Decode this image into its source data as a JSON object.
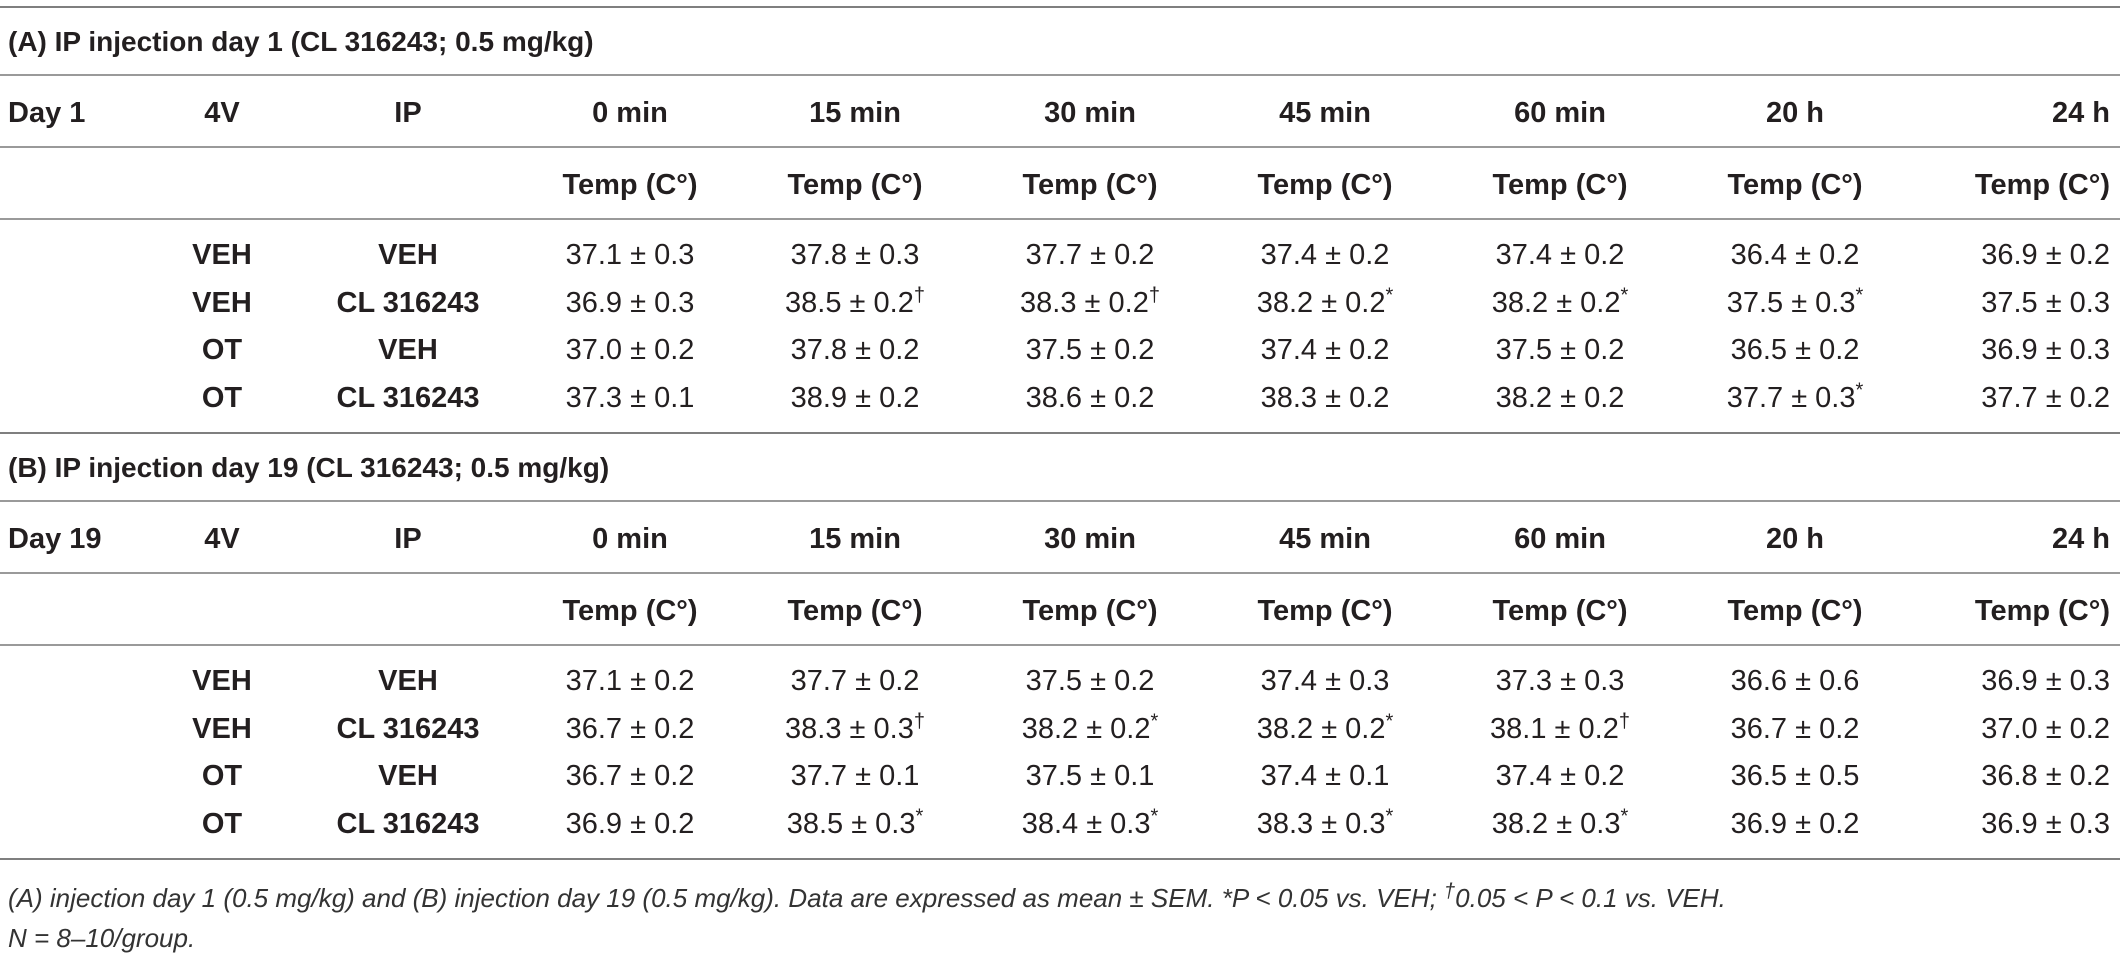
{
  "tables": [
    {
      "title": "(A) IP injection day 1 (CL 316243; 0.5 mg/kg)",
      "day_label": "Day 1",
      "col_4v": "4V",
      "col_ip": "IP",
      "time_points": [
        "0 min",
        "15 min",
        "30 min",
        "45 min",
        "60 min",
        "20 h",
        "24 h"
      ],
      "unit_label": "Temp (C°)",
      "rows": [
        {
          "v4": "VEH",
          "ip": "VEH",
          "values": [
            {
              "v": "37.1 ± 0.3",
              "m": ""
            },
            {
              "v": "37.8 ± 0.3",
              "m": ""
            },
            {
              "v": "37.7 ± 0.2",
              "m": ""
            },
            {
              "v": "37.4 ± 0.2",
              "m": ""
            },
            {
              "v": "37.4 ± 0.2",
              "m": ""
            },
            {
              "v": "36.4 ± 0.2",
              "m": ""
            },
            {
              "v": "36.9 ± 0.2",
              "m": ""
            }
          ]
        },
        {
          "v4": "VEH",
          "ip": "CL 316243",
          "values": [
            {
              "v": "36.9 ± 0.3",
              "m": ""
            },
            {
              "v": "38.5 ± 0.2",
              "m": "†"
            },
            {
              "v": "38.3 ± 0.2",
              "m": "†"
            },
            {
              "v": "38.2 ± 0.2",
              "m": "*"
            },
            {
              "v": "38.2 ± 0.2",
              "m": "*"
            },
            {
              "v": "37.5 ± 0.3",
              "m": "*"
            },
            {
              "v": "37.5 ± 0.3",
              "m": ""
            }
          ]
        },
        {
          "v4": "OT",
          "ip": "VEH",
          "values": [
            {
              "v": "37.0 ± 0.2",
              "m": ""
            },
            {
              "v": "37.8 ± 0.2",
              "m": ""
            },
            {
              "v": "37.5 ± 0.2",
              "m": ""
            },
            {
              "v": "37.4 ± 0.2",
              "m": ""
            },
            {
              "v": "37.5 ± 0.2",
              "m": ""
            },
            {
              "v": "36.5 ± 0.2",
              "m": ""
            },
            {
              "v": "36.9 ± 0.3",
              "m": ""
            }
          ]
        },
        {
          "v4": "OT",
          "ip": "CL 316243",
          "values": [
            {
              "v": "37.3 ± 0.1",
              "m": ""
            },
            {
              "v": "38.9 ± 0.2",
              "m": ""
            },
            {
              "v": "38.6 ± 0.2",
              "m": ""
            },
            {
              "v": "38.3 ± 0.2",
              "m": ""
            },
            {
              "v": "38.2 ± 0.2",
              "m": ""
            },
            {
              "v": "37.7 ± 0.3",
              "m": "*"
            },
            {
              "v": "37.7 ± 0.2",
              "m": ""
            }
          ]
        }
      ]
    },
    {
      "title": "(B) IP injection day 19 (CL 316243; 0.5 mg/kg)",
      "day_label": "Day 19",
      "col_4v": "4V",
      "col_ip": "IP",
      "time_points": [
        "0 min",
        "15 min",
        "30 min",
        "45 min",
        "60 min",
        "20 h",
        "24 h"
      ],
      "unit_label": "Temp (C°)",
      "rows": [
        {
          "v4": "VEH",
          "ip": "VEH",
          "values": [
            {
              "v": "37.1 ± 0.2",
              "m": ""
            },
            {
              "v": "37.7 ± 0.2",
              "m": ""
            },
            {
              "v": "37.5 ± 0.2",
              "m": ""
            },
            {
              "v": "37.4 ± 0.3",
              "m": ""
            },
            {
              "v": "37.3 ± 0.3",
              "m": ""
            },
            {
              "v": "36.6 ± 0.6",
              "m": ""
            },
            {
              "v": "36.9 ± 0.3",
              "m": ""
            }
          ]
        },
        {
          "v4": "VEH",
          "ip": "CL 316243",
          "values": [
            {
              "v": "36.7 ± 0.2",
              "m": ""
            },
            {
              "v": "38.3 ± 0.3",
              "m": "†"
            },
            {
              "v": "38.2 ± 0.2",
              "m": "*"
            },
            {
              "v": "38.2 ± 0.2",
              "m": "*"
            },
            {
              "v": "38.1 ± 0.2",
              "m": "†"
            },
            {
              "v": "36.7 ± 0.2",
              "m": ""
            },
            {
              "v": "37.0 ± 0.2",
              "m": ""
            }
          ]
        },
        {
          "v4": "OT",
          "ip": "VEH",
          "values": [
            {
              "v": "36.7 ± 0.2",
              "m": ""
            },
            {
              "v": "37.7 ± 0.1",
              "m": ""
            },
            {
              "v": "37.5 ± 0.1",
              "m": ""
            },
            {
              "v": "37.4 ± 0.1",
              "m": ""
            },
            {
              "v": "37.4 ± 0.2",
              "m": ""
            },
            {
              "v": "36.5 ± 0.5",
              "m": ""
            },
            {
              "v": "36.8 ± 0.2",
              "m": ""
            }
          ]
        },
        {
          "v4": "OT",
          "ip": "CL 316243",
          "values": [
            {
              "v": "36.9 ± 0.2",
              "m": ""
            },
            {
              "v": "38.5 ± 0.3",
              "m": "*"
            },
            {
              "v": "38.4 ± 0.3",
              "m": "*"
            },
            {
              "v": "38.3 ± 0.3",
              "m": "*"
            },
            {
              "v": "38.2 ± 0.3",
              "m": "*"
            },
            {
              "v": "36.9 ± 0.2",
              "m": ""
            },
            {
              "v": "36.9 ± 0.3",
              "m": ""
            }
          ]
        }
      ]
    }
  ],
  "footnote": {
    "line1_a": "(A) injection day 1 (0.5 mg/kg) and (B) injection day 19 (0.5 mg/kg). Data are expressed as mean ± SEM. *P < 0.05 vs. VEH; ",
    "line1_mark": "†",
    "line1_b": "0.05 < P < 0.1 vs. VEH.",
    "line2": "N = 8–10/group."
  }
}
